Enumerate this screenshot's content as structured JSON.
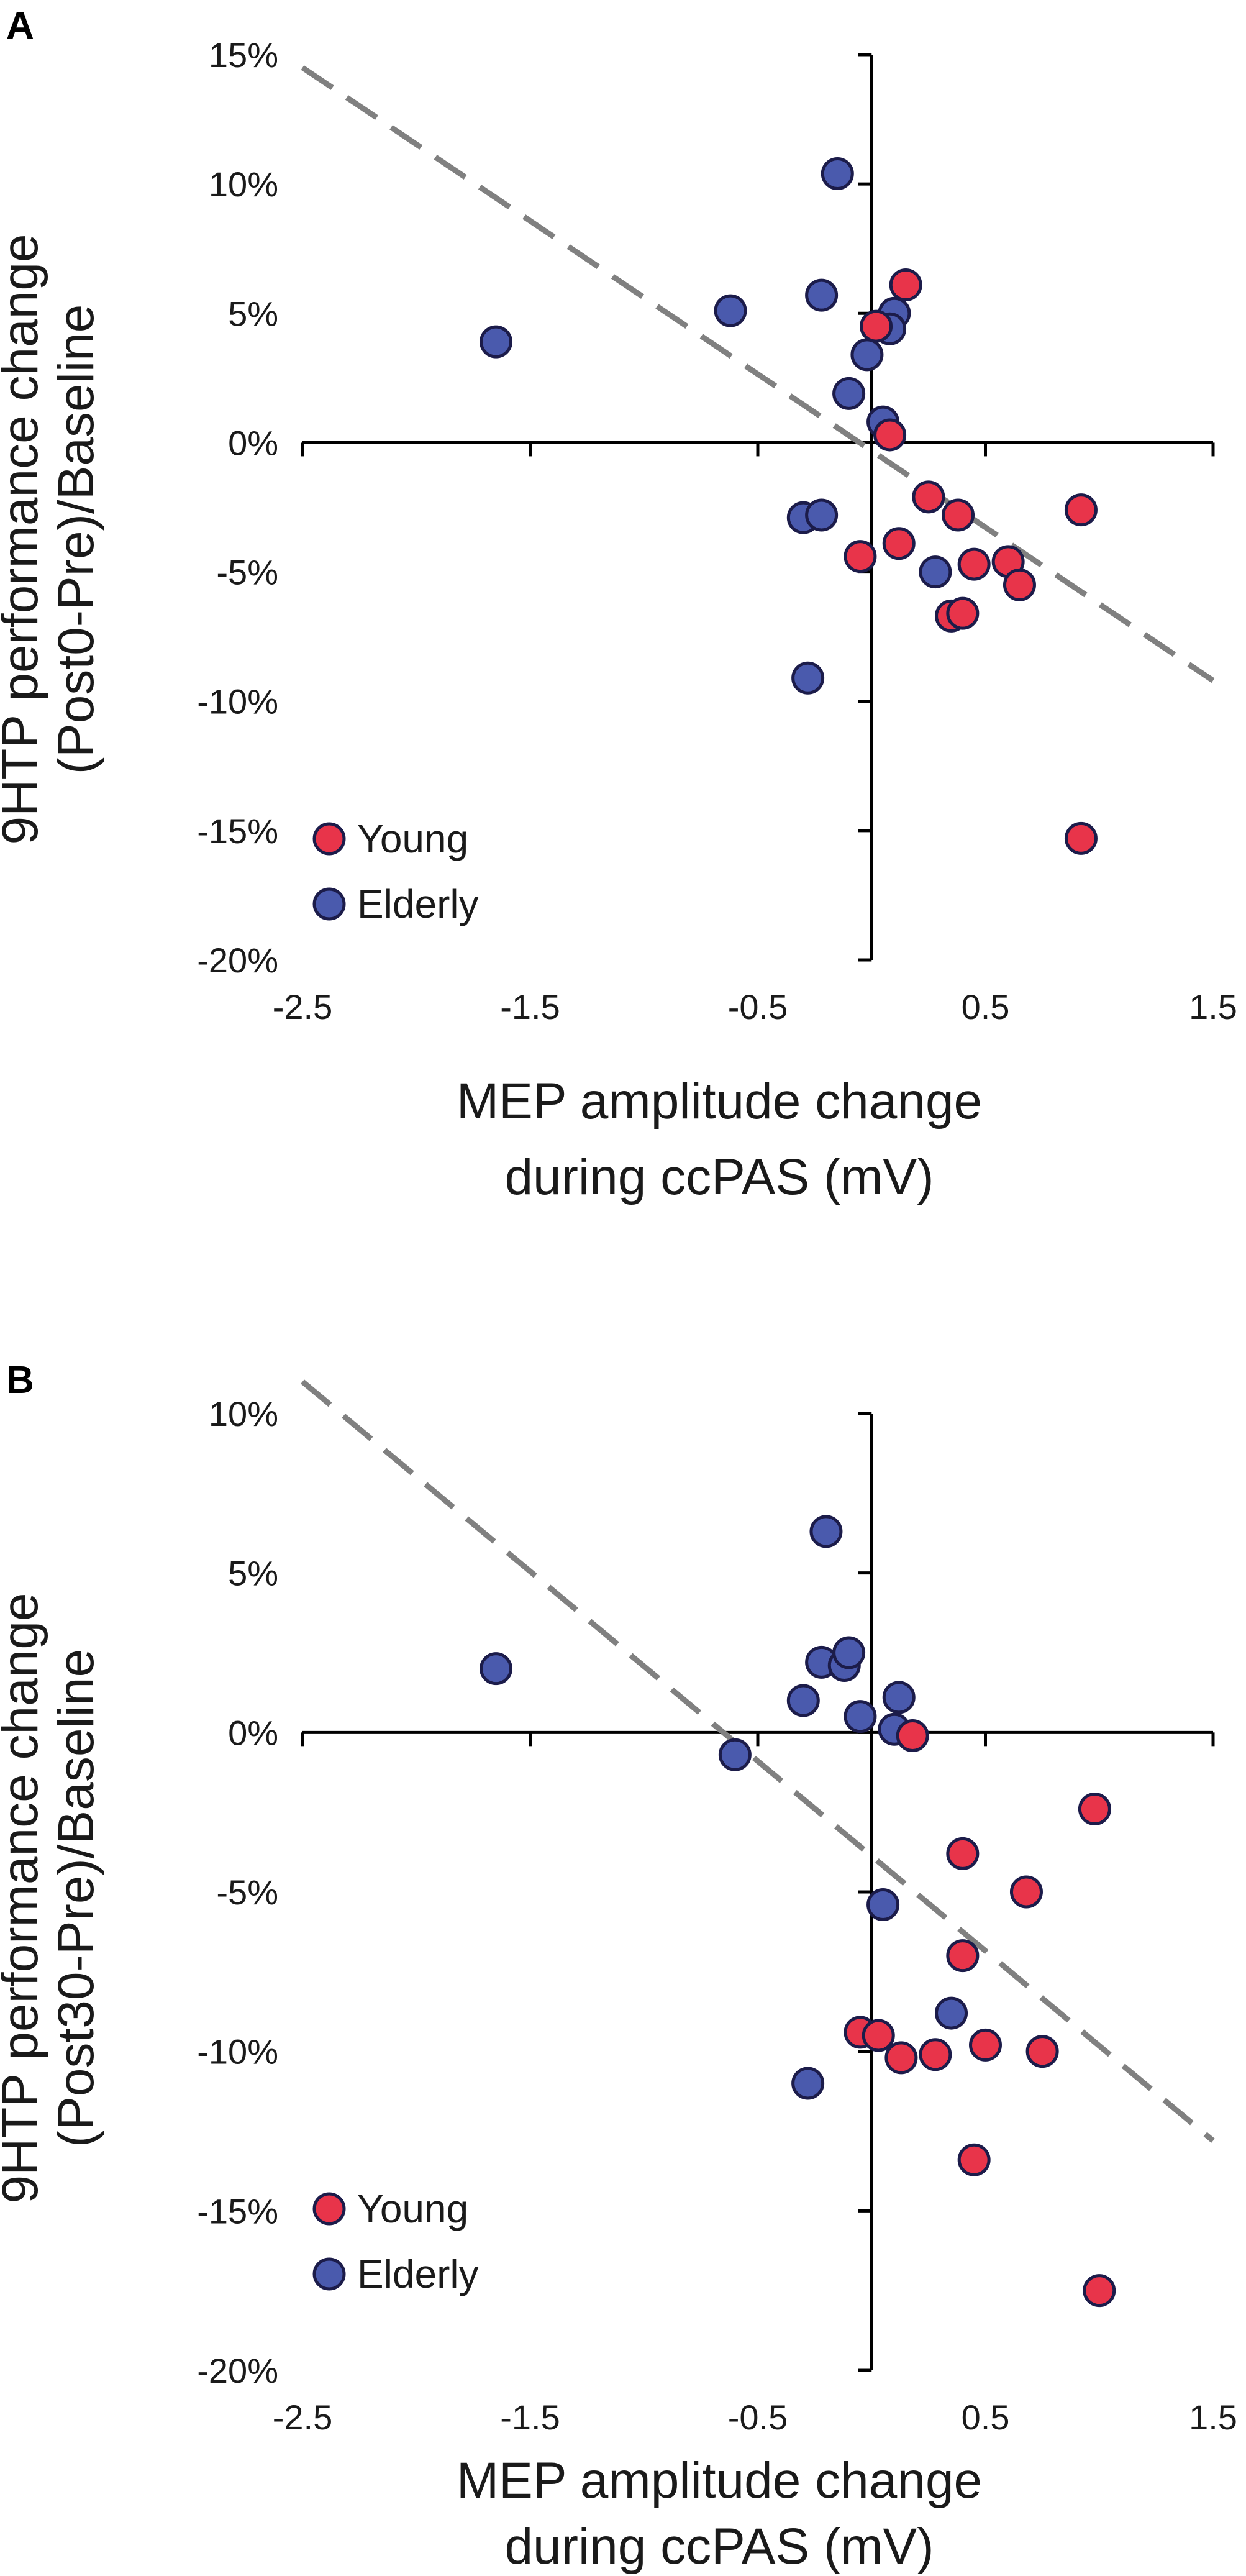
{
  "colors": {
    "young": "#e8344a",
    "elderly": "#4a5aad",
    "marker_stroke": "#1c1c4a",
    "fit_line": "#808080",
    "axis": "#000000"
  },
  "chart_data": [
    {
      "panel_label": "A",
      "type": "scatter",
      "xlabel_line1": "MEP amplitude change",
      "xlabel_line2": "during ccPAS (mV)",
      "ylabel_line1": "9HTP performance change",
      "ylabel_line2": "(Post0-Pre)/Baseline",
      "xlim": [
        -2.5,
        1.5
      ],
      "ylim": [
        -20,
        15
      ],
      "xticks": [
        "-2.5",
        "-1.5",
        "-0.5",
        "0.5",
        "1.5"
      ],
      "xtick_values": [
        -2.5,
        -1.5,
        -0.5,
        0.5,
        1.5
      ],
      "yticks": [
        "15%",
        "10%",
        "5%",
        "0%",
        "-5%",
        "-10%",
        "-15%",
        "-20%"
      ],
      "ytick_values": [
        15,
        10,
        5,
        0,
        -5,
        -10,
        -15,
        -20
      ],
      "legend": [
        "Young",
        "Elderly"
      ],
      "legend_position": "bottom-left",
      "fit_line": {
        "x": [
          -2.5,
          1.5
        ],
        "y": [
          14.5,
          -9.2
        ]
      },
      "series": [
        {
          "name": "Young",
          "points": [
            [
              0.15,
              6.1
            ],
            [
              0.02,
              4.5
            ],
            [
              0.08,
              0.3
            ],
            [
              -0.05,
              -4.4
            ],
            [
              0.12,
              -3.9
            ],
            [
              0.25,
              -2.1
            ],
            [
              0.38,
              -2.8
            ],
            [
              0.45,
              -4.7
            ],
            [
              0.35,
              -6.7
            ],
            [
              0.4,
              -6.6
            ],
            [
              0.6,
              -4.6
            ],
            [
              0.65,
              -5.5
            ],
            [
              0.92,
              -2.6
            ],
            [
              0.92,
              -15.3
            ]
          ]
        },
        {
          "name": "Elderly",
          "points": [
            [
              -1.65,
              3.9
            ],
            [
              -0.62,
              5.1
            ],
            [
              -0.15,
              10.4
            ],
            [
              -0.22,
              5.7
            ],
            [
              0.1,
              5.0
            ],
            [
              0.08,
              4.4
            ],
            [
              -0.02,
              3.4
            ],
            [
              -0.1,
              1.9
            ],
            [
              0.05,
              0.8
            ],
            [
              -0.3,
              -2.9
            ],
            [
              -0.22,
              -2.8
            ],
            [
              0.28,
              -5.0
            ],
            [
              -0.28,
              -9.1
            ]
          ]
        }
      ]
    },
    {
      "panel_label": "B",
      "type": "scatter",
      "xlabel_line1": "MEP amplitude change",
      "xlabel_line2": "during ccPAS (mV)",
      "ylabel_line1": "9HTP performance change",
      "ylabel_line2": "(Post30-Pre)/Baseline",
      "xlim": [
        -2.5,
        1.5
      ],
      "ylim": [
        -20,
        10
      ],
      "xticks": [
        "-2.5",
        "-1.5",
        "-0.5",
        "0.5",
        "1.5"
      ],
      "xtick_values": [
        -2.5,
        -1.5,
        -0.5,
        0.5,
        1.5
      ],
      "yticks": [
        "10%",
        "5%",
        "0%",
        "-5%",
        "-10%",
        "-15%",
        "-20%"
      ],
      "ytick_values": [
        10,
        5,
        0,
        -5,
        -10,
        -15,
        -20
      ],
      "legend": [
        "Young",
        "Elderly"
      ],
      "legend_position": "bottom-left",
      "fit_line": {
        "x": [
          -2.5,
          1.5
        ],
        "y": [
          11.0,
          -12.8
        ]
      },
      "series": [
        {
          "name": "Young",
          "points": [
            [
              0.18,
              -0.1
            ],
            [
              0.4,
              -3.8
            ],
            [
              0.98,
              -2.4
            ],
            [
              0.68,
              -5.0
            ],
            [
              0.4,
              -7.0
            ],
            [
              -0.05,
              -9.4
            ],
            [
              0.03,
              -9.5
            ],
            [
              0.13,
              -10.2
            ],
            [
              0.28,
              -10.1
            ],
            [
              0.5,
              -9.8
            ],
            [
              0.75,
              -10.0
            ],
            [
              0.45,
              -13.4
            ],
            [
              1.0,
              -17.5
            ]
          ]
        },
        {
          "name": "Elderly",
          "points": [
            [
              -1.65,
              2.0
            ],
            [
              -0.2,
              6.3
            ],
            [
              -0.22,
              2.2
            ],
            [
              -0.12,
              2.1
            ],
            [
              -0.1,
              2.5
            ],
            [
              -0.3,
              1.0
            ],
            [
              -0.05,
              0.5
            ],
            [
              0.12,
              1.1
            ],
            [
              0.1,
              0.1
            ],
            [
              -0.6,
              -0.7
            ],
            [
              0.05,
              -5.4
            ],
            [
              0.35,
              -8.8
            ],
            [
              -0.28,
              -11.0
            ]
          ]
        }
      ]
    }
  ]
}
